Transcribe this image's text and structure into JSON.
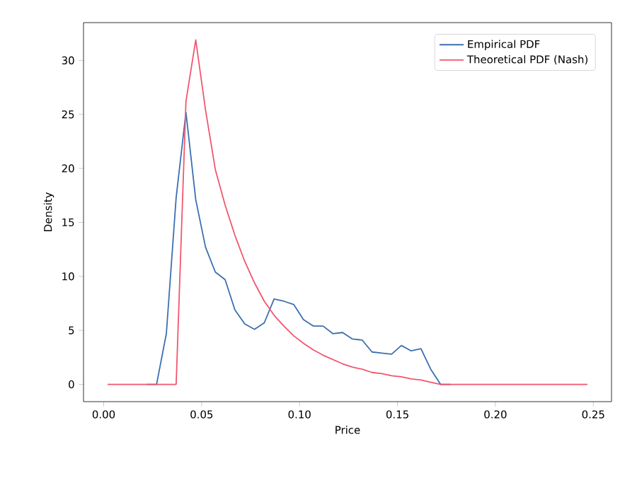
{
  "chart_data": {
    "type": "line",
    "xlabel": "Price",
    "ylabel": "Density",
    "x": [
      0.002,
      0.007,
      0.012,
      0.017,
      0.022,
      0.027,
      0.032,
      0.037,
      0.042,
      0.047,
      0.052,
      0.057,
      0.062,
      0.067,
      0.072,
      0.077,
      0.082,
      0.087,
      0.092,
      0.097,
      0.102,
      0.107,
      0.112,
      0.117,
      0.122,
      0.127,
      0.132,
      0.137,
      0.142,
      0.147,
      0.152,
      0.157,
      0.162,
      0.167,
      0.172,
      0.177,
      0.182,
      0.187,
      0.192,
      0.197,
      0.202,
      0.207,
      0.212,
      0.217,
      0.222,
      0.227,
      0.232,
      0.237,
      0.242,
      0.247
    ],
    "series": [
      {
        "name": "Empirical PDF",
        "color": "#3b6fb0",
        "values": [
          null,
          null,
          null,
          null,
          0,
          0,
          4.7,
          17.3,
          25.2,
          17.1,
          12.7,
          10.4,
          9.7,
          6.9,
          5.6,
          5.1,
          5.7,
          7.9,
          7.7,
          7.4,
          6.0,
          5.4,
          5.4,
          4.7,
          4.8,
          4.2,
          4.1,
          3.0,
          2.9,
          2.8,
          3.6,
          3.1,
          3.3,
          1.4,
          0,
          0,
          null,
          null,
          null,
          null,
          null,
          null,
          null,
          null,
          null,
          null,
          null,
          null,
          null,
          null
        ]
      },
      {
        "name": "Theoretical PDF (Nash)",
        "color": "#f2566e",
        "values": [
          0,
          0,
          0,
          0,
          0,
          0,
          0,
          0,
          26.2,
          31.9,
          25.4,
          19.9,
          16.6,
          13.8,
          11.4,
          9.4,
          7.7,
          6.4,
          5.4,
          4.5,
          3.8,
          3.2,
          2.7,
          2.3,
          1.9,
          1.6,
          1.4,
          1.1,
          1.0,
          0.8,
          0.7,
          0.5,
          0.4,
          0.2,
          0,
          0,
          0,
          0,
          0,
          0,
          0,
          0,
          0,
          0,
          0,
          0,
          0,
          0,
          0,
          0
        ]
      }
    ],
    "xlim": [
      -0.0103,
      0.2593
    ],
    "ylim": [
      -1.6,
      33.5
    ],
    "xticks": [
      {
        "value": 0,
        "label": "0.00"
      },
      {
        "value": 0.05,
        "label": "0.05"
      },
      {
        "value": 0.1,
        "label": "0.10"
      },
      {
        "value": 0.15,
        "label": "0.15"
      },
      {
        "value": 0.2,
        "label": "0.20"
      },
      {
        "value": 0.25,
        "label": "0.25"
      }
    ],
    "yticks": [
      0,
      5,
      10,
      15,
      20,
      25,
      30
    ],
    "legend": "top right",
    "grid": false,
    "marker": "none",
    "line_style": "solid"
  }
}
